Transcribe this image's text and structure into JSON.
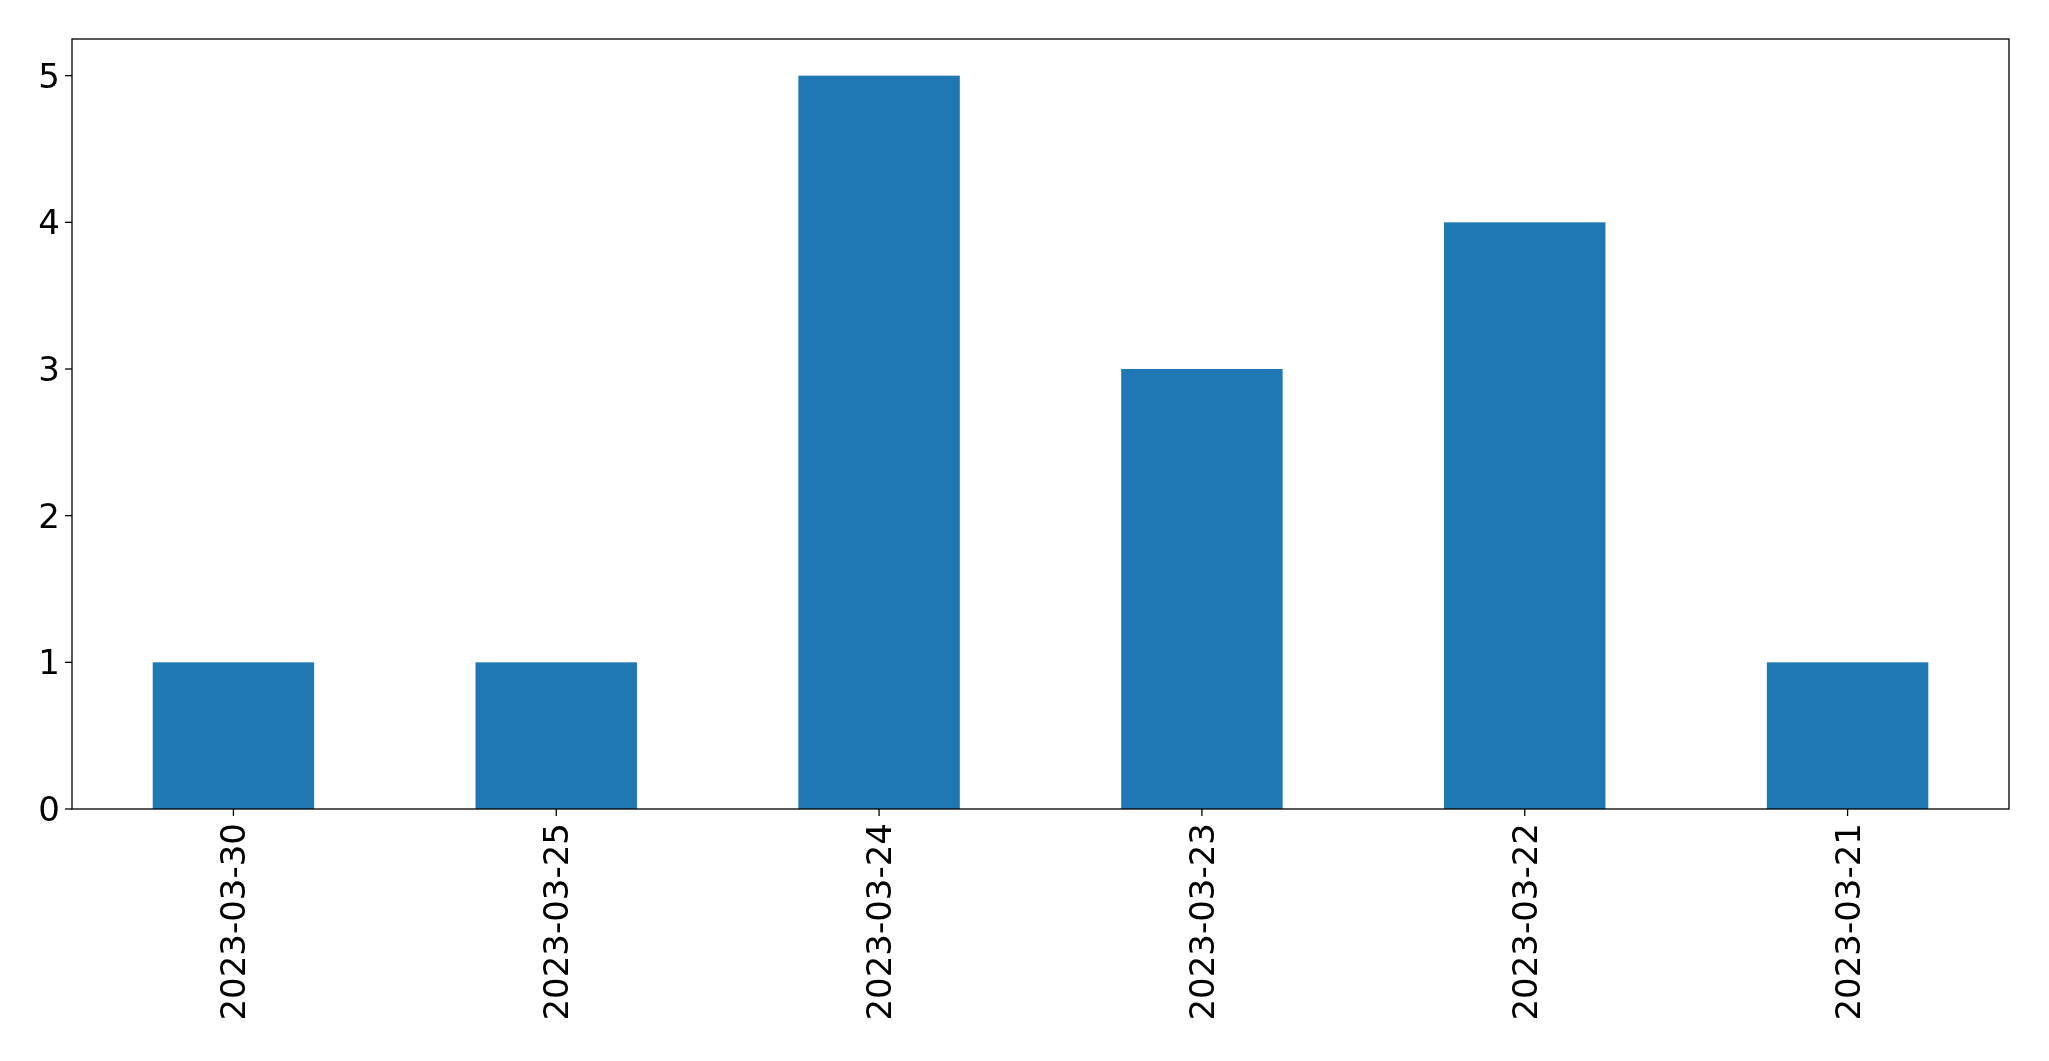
{
  "chart_data": {
    "type": "bar",
    "categories": [
      "2023-03-30",
      "2023-03-25",
      "2023-03-24",
      "2023-03-23",
      "2023-03-22",
      "2023-03-21"
    ],
    "values": [
      1,
      1,
      5,
      3,
      4,
      1
    ],
    "color": "#1f77b4",
    "ylim": [
      0,
      5.25
    ],
    "yticks": [
      0,
      1,
      2,
      3,
      4,
      5
    ]
  }
}
